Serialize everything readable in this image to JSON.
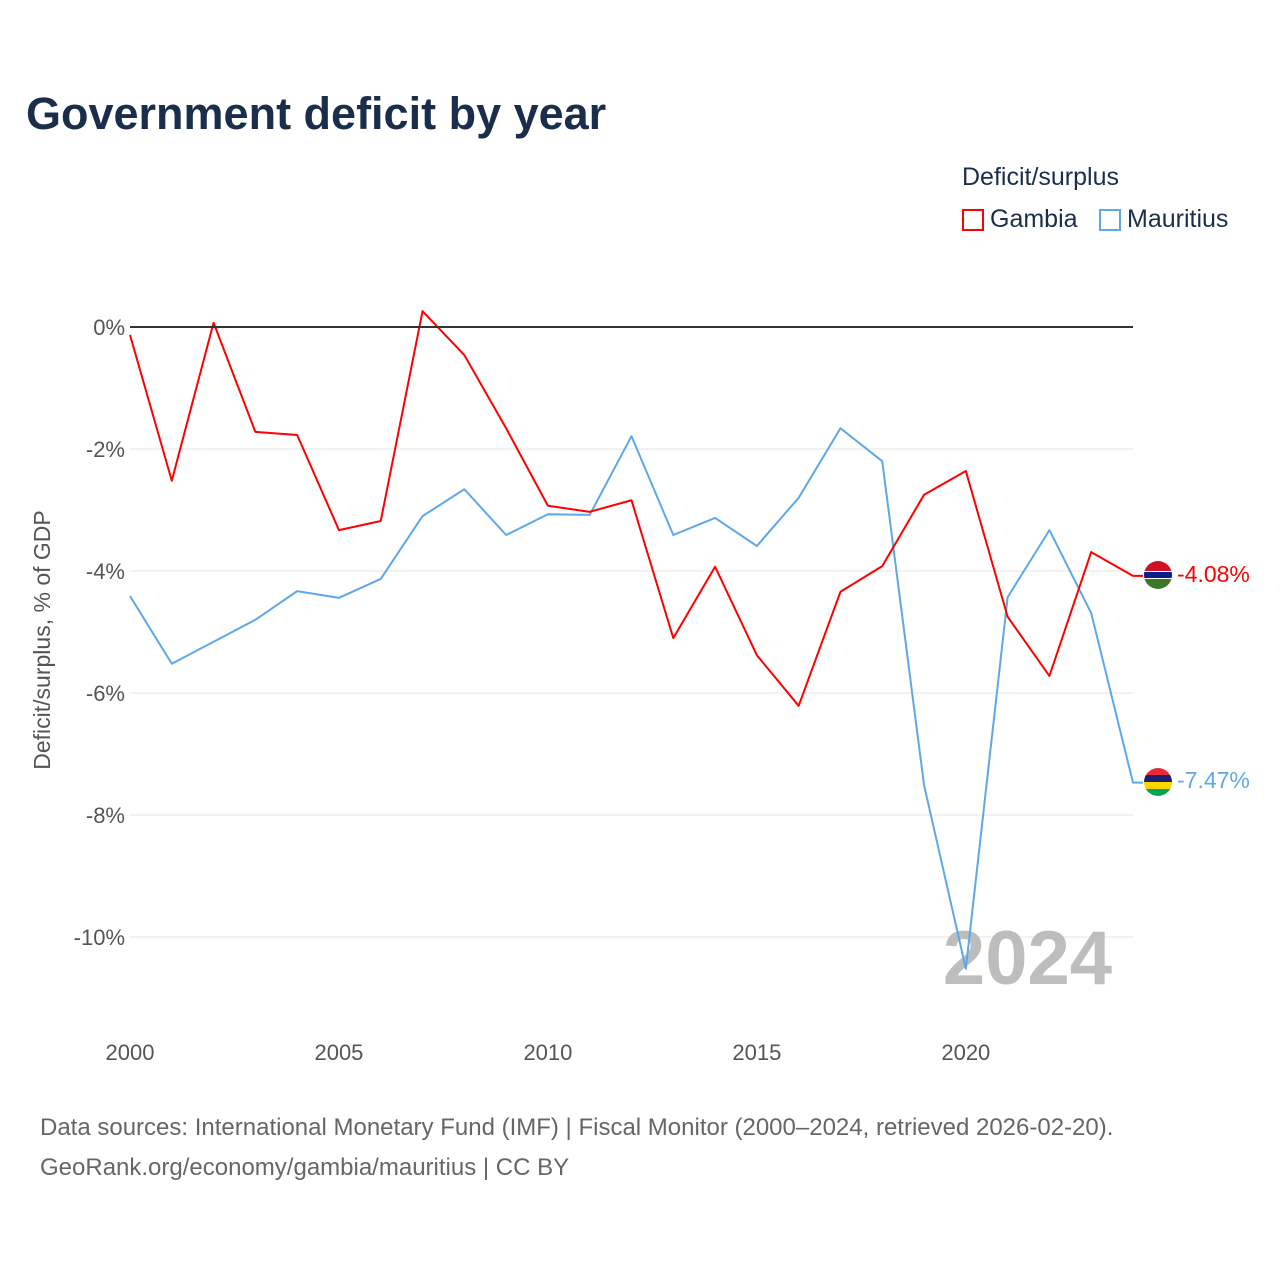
{
  "chart_data": {
    "type": "line",
    "title": "Government deficit by year",
    "ylabel": "Deficit/surplus, % of GDP",
    "xlabel": "",
    "legend_title": "Deficit/surplus",
    "legend_placement": "top-right",
    "x": [
      2000,
      2001,
      2002,
      2003,
      2004,
      2005,
      2006,
      2007,
      2008,
      2009,
      2010,
      2011,
      2012,
      2013,
      2014,
      2015,
      2016,
      2017,
      2018,
      2019,
      2020,
      2021,
      2022,
      2023,
      2024
    ],
    "xlim": [
      2000,
      2024
    ],
    "ylim": [
      -11.3,
      1.1
    ],
    "xticks": [
      "2000",
      "2005",
      "2010",
      "2015",
      "2020"
    ],
    "yticks": [
      {
        "v": 0,
        "label": "0%"
      },
      {
        "v": -2,
        "label": "-2%"
      },
      {
        "v": -4,
        "label": "-4%"
      },
      {
        "v": -6,
        "label": "-6%"
      },
      {
        "v": -8,
        "label": "-8%"
      },
      {
        "v": -10,
        "label": "-10%"
      }
    ],
    "series": [
      {
        "name": "Gambia",
        "color": "#ff0000",
        "end_label": "-4.08%",
        "values": [
          -0.13,
          -2.52,
          0.07,
          -1.72,
          -1.77,
          -3.33,
          -3.18,
          0.26,
          -0.46,
          -1.66,
          -2.93,
          -3.03,
          -2.84,
          -5.1,
          -3.93,
          -5.38,
          -6.21,
          -4.34,
          -3.92,
          -2.75,
          -2.36,
          -4.75,
          -5.72,
          -3.69,
          -4.08
        ]
      },
      {
        "name": "Mauritius",
        "color": "#5ea8e8",
        "end_label": "-7.47%",
        "values": [
          -4.41,
          -5.52,
          -5.16,
          -4.8,
          -4.33,
          -4.44,
          -4.13,
          -3.1,
          -2.66,
          -3.41,
          -3.07,
          -3.08,
          -1.79,
          -3.41,
          -3.13,
          -3.59,
          -2.8,
          -1.66,
          -2.2,
          -7.51,
          -10.52,
          -4.43,
          -3.33,
          -4.69,
          -7.47
        ]
      }
    ],
    "watermark_year": "2024",
    "grid": true
  },
  "source": {
    "line1": "Data sources: International Monetary Fund (IMF) | Fiscal Monitor (2000–2024, retrieved 2026-02-20).",
    "line2": "GeoRank.org/economy/gambia/mauritius | CC BY"
  }
}
